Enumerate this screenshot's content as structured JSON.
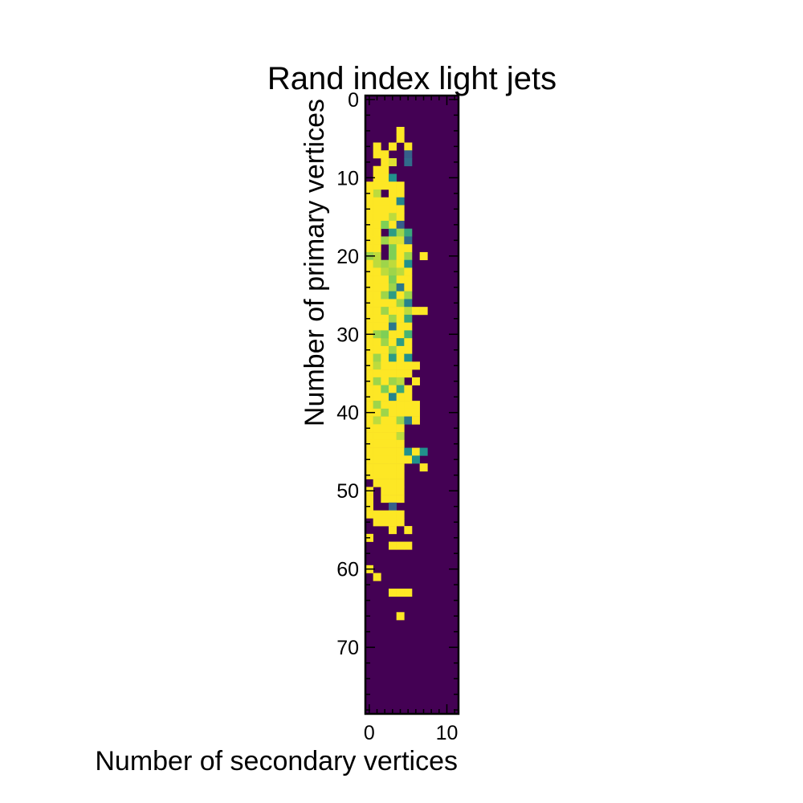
{
  "chart_data": {
    "type": "heatmap",
    "title": "Rand index light jets",
    "xlabel": "Number of secondary vertices",
    "ylabel": "Number of primary vertices",
    "xlim": [
      -0.5,
      11.5
    ],
    "ylim": [
      78.5,
      -0.5
    ],
    "x_ticks": [
      0,
      10
    ],
    "y_ticks": [
      0,
      10,
      20,
      30,
      40,
      50,
      60,
      70
    ],
    "colormap": "viridis",
    "colors": {
      "background": "#440154",
      "high": "#fde725",
      "mid_high": "#b5de2b",
      "mid": "#35b779",
      "mid_low": "#26828e",
      "low": "#31688e"
    },
    "value_range": [
      0,
      1
    ],
    "cells": [
      [
        4,
        4,
        1
      ],
      [
        6,
        1,
        1
      ],
      [
        7,
        1,
        1
      ],
      [
        7,
        2,
        1
      ],
      [
        8,
        2,
        1
      ],
      [
        9,
        2,
        1
      ],
      [
        10,
        2,
        1
      ],
      [
        11,
        2,
        1
      ],
      [
        6,
        3,
        1
      ],
      [
        8,
        3,
        0.95
      ],
      [
        10,
        3,
        1
      ],
      [
        11,
        3,
        1
      ],
      [
        12,
        3,
        1
      ],
      [
        13,
        3,
        1
      ],
      [
        14,
        3,
        1
      ],
      [
        15,
        3,
        1
      ],
      [
        16,
        3,
        1
      ],
      [
        17,
        3,
        1
      ],
      [
        18,
        3,
        0.95
      ],
      [
        19,
        3,
        1
      ],
      [
        20,
        3,
        1
      ],
      [
        5,
        4,
        1
      ],
      [
        12,
        4,
        1
      ],
      [
        13,
        4,
        1
      ],
      [
        14,
        4,
        1
      ],
      [
        15,
        4,
        1
      ],
      [
        16,
        4,
        1
      ],
      [
        17,
        4,
        1
      ],
      [
        18,
        4,
        1
      ],
      [
        19,
        4,
        1
      ],
      [
        20,
        4,
        1
      ],
      [
        6,
        5,
        1
      ],
      [
        7,
        5,
        0.3
      ],
      [
        8,
        5,
        0.35
      ],
      [
        9,
        1,
        1
      ],
      [
        10,
        1,
        1
      ],
      [
        11,
        1,
        1
      ],
      [
        12,
        1,
        0.9
      ],
      [
        13,
        1,
        1
      ],
      [
        14,
        1,
        1
      ],
      [
        15,
        1,
        1
      ],
      [
        16,
        1,
        1
      ],
      [
        17,
        1,
        1
      ],
      [
        18,
        1,
        1
      ],
      [
        19,
        1,
        1
      ],
      [
        20,
        1,
        0.85
      ],
      [
        11,
        0,
        1
      ],
      [
        12,
        0,
        1
      ],
      [
        13,
        0,
        1
      ],
      [
        14,
        0,
        1
      ],
      [
        15,
        0,
        1
      ],
      [
        16,
        0,
        1
      ],
      [
        17,
        0,
        1
      ],
      [
        18,
        0,
        1
      ],
      [
        19,
        0,
        1
      ],
      [
        20,
        0,
        0.85
      ],
      [
        9,
        2,
        1
      ],
      [
        10,
        3,
        0.5
      ],
      [
        11,
        4,
        1
      ],
      [
        12,
        3,
        1
      ],
      [
        13,
        2,
        1
      ],
      [
        13,
        4,
        0.45
      ],
      [
        14,
        2,
        1
      ],
      [
        15,
        2,
        1
      ],
      [
        15,
        3,
        0.9
      ],
      [
        16,
        2,
        0.8
      ],
      [
        16,
        4,
        0.3
      ],
      [
        17,
        3,
        0.55
      ],
      [
        17,
        4,
        0.85
      ],
      [
        17,
        5,
        0.6
      ],
      [
        18,
        2,
        0.85
      ],
      [
        18,
        4,
        0.95
      ],
      [
        18,
        5,
        0.35
      ],
      [
        19,
        3,
        0.8
      ],
      [
        19,
        5,
        1
      ],
      [
        20,
        1,
        0.9
      ],
      [
        20,
        3,
        0.8
      ],
      [
        20,
        5,
        0.85
      ],
      [
        20,
        7,
        1
      ],
      [
        21,
        0,
        1
      ],
      [
        21,
        1,
        0.9
      ],
      [
        21,
        2,
        0.85
      ],
      [
        21,
        3,
        0.9
      ],
      [
        21,
        4,
        1
      ],
      [
        21,
        5,
        0.5
      ],
      [
        22,
        0,
        1
      ],
      [
        22,
        1,
        1
      ],
      [
        22,
        2,
        0.9
      ],
      [
        22,
        3,
        0.85
      ],
      [
        22,
        4,
        0.9
      ],
      [
        22,
        5,
        1
      ],
      [
        23,
        0,
        1
      ],
      [
        23,
        1,
        1
      ],
      [
        23,
        2,
        1
      ],
      [
        23,
        3,
        0.8
      ],
      [
        23,
        4,
        1
      ],
      [
        23,
        5,
        1
      ],
      [
        24,
        0,
        1
      ],
      [
        24,
        1,
        1
      ],
      [
        24,
        2,
        1
      ],
      [
        24,
        3,
        0.85
      ],
      [
        24,
        4,
        0.4
      ],
      [
        24,
        5,
        1
      ],
      [
        25,
        0,
        1
      ],
      [
        25,
        1,
        1
      ],
      [
        25,
        2,
        0.85
      ],
      [
        25,
        3,
        0.55
      ],
      [
        25,
        4,
        1
      ],
      [
        25,
        5,
        0.85
      ],
      [
        26,
        0,
        1
      ],
      [
        26,
        1,
        1
      ],
      [
        26,
        2,
        1
      ],
      [
        26,
        3,
        1
      ],
      [
        26,
        4,
        0.85
      ],
      [
        26,
        5,
        0.45
      ],
      [
        27,
        0,
        1
      ],
      [
        27,
        1,
        1
      ],
      [
        27,
        2,
        0.85
      ],
      [
        27,
        3,
        1
      ],
      [
        27,
        4,
        1
      ],
      [
        27,
        5,
        0.9
      ],
      [
        27,
        6,
        1
      ],
      [
        27,
        7,
        1
      ],
      [
        28,
        0,
        1
      ],
      [
        28,
        1,
        1
      ],
      [
        28,
        2,
        1
      ],
      [
        28,
        3,
        0.85
      ],
      [
        28,
        4,
        1
      ],
      [
        28,
        5,
        0.6
      ],
      [
        29,
        0,
        1
      ],
      [
        29,
        1,
        1
      ],
      [
        29,
        2,
        1
      ],
      [
        29,
        3,
        0.4
      ],
      [
        29,
        4,
        1
      ],
      [
        29,
        5,
        1
      ],
      [
        30,
        0,
        1
      ],
      [
        30,
        1,
        0.85
      ],
      [
        30,
        2,
        0.8
      ],
      [
        30,
        3,
        1
      ],
      [
        30,
        4,
        1
      ],
      [
        30,
        5,
        0.65
      ],
      [
        31,
        0,
        1
      ],
      [
        31,
        1,
        1
      ],
      [
        31,
        2,
        0.85
      ],
      [
        31,
        3,
        1
      ],
      [
        31,
        4,
        0.55
      ],
      [
        31,
        5,
        1
      ],
      [
        32,
        0,
        1
      ],
      [
        32,
        1,
        1
      ],
      [
        32,
        2,
        1
      ],
      [
        32,
        3,
        0.85
      ],
      [
        32,
        4,
        1
      ],
      [
        32,
        5,
        1
      ],
      [
        33,
        0,
        1
      ],
      [
        33,
        1,
        0.85
      ],
      [
        33,
        2,
        1
      ],
      [
        33,
        3,
        0.55
      ],
      [
        33,
        4,
        1
      ],
      [
        33,
        5,
        0.5
      ],
      [
        34,
        0,
        1
      ],
      [
        34,
        1,
        0.9
      ],
      [
        34,
        2,
        1
      ],
      [
        34,
        3,
        1
      ],
      [
        34,
        4,
        1
      ],
      [
        34,
        5,
        1
      ],
      [
        34,
        6,
        1
      ],
      [
        35,
        0,
        1
      ],
      [
        35,
        1,
        1
      ],
      [
        35,
        2,
        1
      ],
      [
        35,
        3,
        1
      ],
      [
        35,
        4,
        1
      ],
      [
        35,
        5,
        1
      ],
      [
        36,
        0,
        1
      ],
      [
        36,
        1,
        0.85
      ],
      [
        36,
        2,
        1
      ],
      [
        36,
        3,
        0.85
      ],
      [
        36,
        4,
        0.9
      ],
      [
        36,
        6,
        1
      ],
      [
        37,
        0,
        1
      ],
      [
        37,
        1,
        1
      ],
      [
        37,
        2,
        0.8
      ],
      [
        37,
        3,
        1
      ],
      [
        37,
        4,
        0.6
      ],
      [
        37,
        5,
        1
      ],
      [
        38,
        0,
        1
      ],
      [
        38,
        1,
        1
      ],
      [
        38,
        2,
        1
      ],
      [
        38,
        3,
        0.45
      ],
      [
        38,
        4,
        1
      ],
      [
        38,
        5,
        1
      ],
      [
        39,
        0,
        1
      ],
      [
        39,
        1,
        0.85
      ],
      [
        39,
        2,
        1
      ],
      [
        39,
        3,
        1
      ],
      [
        39,
        4,
        1
      ],
      [
        39,
        5,
        1
      ],
      [
        39,
        6,
        1
      ],
      [
        40,
        0,
        1
      ],
      [
        40,
        1,
        1
      ],
      [
        40,
        2,
        0.85
      ],
      [
        40,
        3,
        1
      ],
      [
        40,
        4,
        1
      ],
      [
        40,
        5,
        1
      ],
      [
        40,
        6,
        1
      ],
      [
        41,
        0,
        1
      ],
      [
        41,
        1,
        0.9
      ],
      [
        41,
        2,
        1
      ],
      [
        41,
        3,
        1
      ],
      [
        41,
        4,
        0.85
      ],
      [
        41,
        5,
        0.4
      ],
      [
        41,
        6,
        1
      ],
      [
        42,
        0,
        1
      ],
      [
        42,
        1,
        1
      ],
      [
        42,
        2,
        1
      ],
      [
        42,
        3,
        1
      ],
      [
        42,
        4,
        1
      ],
      [
        43,
        0,
        1
      ],
      [
        43,
        1,
        1
      ],
      [
        43,
        2,
        1
      ],
      [
        43,
        3,
        1
      ],
      [
        43,
        4,
        0.9
      ],
      [
        44,
        0,
        1
      ],
      [
        44,
        1,
        1
      ],
      [
        44,
        2,
        1
      ],
      [
        44,
        3,
        1
      ],
      [
        44,
        4,
        1
      ],
      [
        45,
        0,
        1
      ],
      [
        45,
        1,
        1
      ],
      [
        45,
        2,
        1
      ],
      [
        45,
        3,
        1
      ],
      [
        45,
        4,
        1
      ],
      [
        45,
        5,
        0.5
      ],
      [
        45,
        6,
        1
      ],
      [
        45,
        7,
        0.5
      ],
      [
        46,
        0,
        1
      ],
      [
        46,
        1,
        1
      ],
      [
        46,
        2,
        1
      ],
      [
        46,
        3,
        1
      ],
      [
        46,
        4,
        1
      ],
      [
        46,
        5,
        1
      ],
      [
        46,
        6,
        0.5
      ],
      [
        47,
        0,
        1
      ],
      [
        47,
        1,
        1
      ],
      [
        47,
        2,
        1
      ],
      [
        47,
        3,
        1
      ],
      [
        47,
        4,
        1
      ],
      [
        47,
        7,
        1
      ],
      [
        48,
        0,
        1
      ],
      [
        48,
        1,
        1
      ],
      [
        48,
        2,
        1
      ],
      [
        48,
        3,
        1
      ],
      [
        48,
        4,
        1
      ],
      [
        49,
        1,
        1
      ],
      [
        49,
        2,
        1
      ],
      [
        49,
        3,
        1
      ],
      [
        49,
        4,
        1
      ],
      [
        50,
        0,
        1
      ],
      [
        50,
        2,
        1
      ],
      [
        50,
        3,
        1
      ],
      [
        50,
        4,
        1
      ],
      [
        51,
        0,
        1
      ],
      [
        51,
        2,
        1
      ],
      [
        51,
        3,
        1
      ],
      [
        51,
        4,
        1
      ],
      [
        52,
        0,
        1
      ],
      [
        52,
        3,
        0.3
      ],
      [
        53,
        0,
        1
      ],
      [
        53,
        1,
        1
      ],
      [
        53,
        2,
        1
      ],
      [
        53,
        3,
        1
      ],
      [
        53,
        4,
        1
      ],
      [
        54,
        1,
        1
      ],
      [
        54,
        2,
        1
      ],
      [
        54,
        3,
        1
      ],
      [
        54,
        4,
        1
      ],
      [
        55,
        3,
        1
      ],
      [
        55,
        5,
        1
      ],
      [
        56,
        0,
        1
      ],
      [
        57,
        3,
        1
      ],
      [
        57,
        4,
        1
      ],
      [
        57,
        5,
        1
      ],
      [
        60,
        0,
        1
      ],
      [
        61,
        1,
        1
      ],
      [
        63,
        3,
        1
      ],
      [
        63,
        4,
        1
      ],
      [
        63,
        5,
        1
      ],
      [
        66,
        4,
        1
      ]
    ]
  }
}
